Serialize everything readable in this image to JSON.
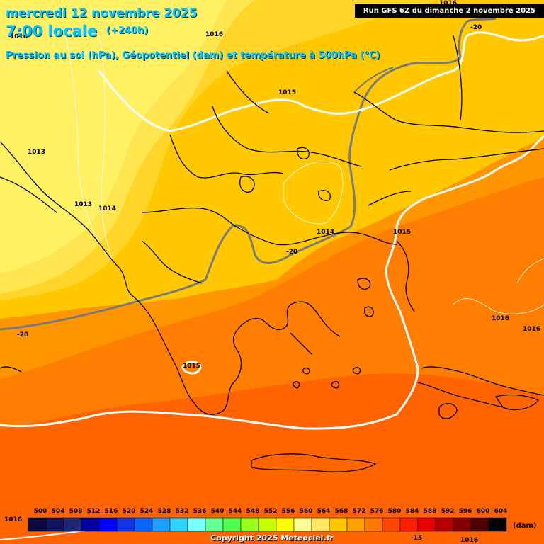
{
  "header": {
    "date": "mercredi 12 novembre 2025",
    "local_time": "7:00 locale",
    "lead": "(+240h)",
    "subtitle": "Pression au sol (hPa), Géopotentiel (dam) et température à 500hPa (°C)",
    "run": "Run GFS 6Z du dimanche 2 novembre 2025"
  },
  "footer": {
    "copyright": "Copyright 2025 Meteociel.fr",
    "legend_unit": "(dam)",
    "legend_left_label": "1016"
  },
  "legend": {
    "values": [
      "500",
      "504",
      "508",
      "512",
      "516",
      "520",
      "524",
      "528",
      "532",
      "536",
      "540",
      "544",
      "548",
      "552",
      "556",
      "560",
      "564",
      "568",
      "572",
      "576",
      "580",
      "584",
      "588",
      "592",
      "596",
      "600",
      "604"
    ],
    "colors": [
      "#0a0a3c",
      "#14145a",
      "#1e2878",
      "#0000a0",
      "#0000ff",
      "#1432e6",
      "#0a64ff",
      "#1ea0ff",
      "#32d2ff",
      "#78ffff",
      "#64ff96",
      "#50ff50",
      "#96ff1e",
      "#c8ff00",
      "#ffff00",
      "#ffff96",
      "#ffe664",
      "#ffc800",
      "#ffa000",
      "#ff7800",
      "#ff4600",
      "#ff1e00",
      "#e60000",
      "#b40000",
      "#820000",
      "#500000",
      "#000000"
    ]
  },
  "isobar_labels": [
    "1016",
    "1016",
    "1013",
    "1013",
    "1014",
    "1015",
    "1014",
    "1015",
    "1016",
    "1016",
    "1015",
    "1016",
    "1016"
  ],
  "temp_labels": [
    "-20",
    "-20",
    "-20",
    "-15"
  ],
  "zones": [
    {
      "name": "zone-552",
      "color": "#ffe84c"
    },
    {
      "name": "zone-556",
      "color": "#ffd320"
    },
    {
      "name": "zone-560",
      "color": "#ffc800"
    },
    {
      "name": "zone-564",
      "color": "#ff9b00"
    },
    {
      "name": "zone-568",
      "color": "#ff7800"
    },
    {
      "name": "zone-572",
      "color": "#ff6400"
    }
  ]
}
